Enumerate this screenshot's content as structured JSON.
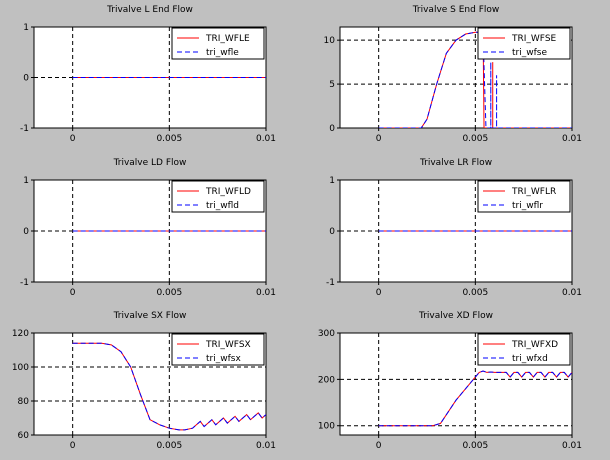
{
  "chart_data": [
    {
      "type": "line",
      "title": "Trivalve L End Flow",
      "xlim": [
        -0.002,
        0.01
      ],
      "ylim": [
        -1,
        1
      ],
      "xticks": [
        0,
        0.005,
        0.01
      ],
      "xtick_labels": [
        "0",
        "0.005",
        "0.01"
      ],
      "yticks": [
        -1,
        0,
        1
      ],
      "ytick_labels": [
        "-1",
        "0",
        "1"
      ],
      "grid": "dashed",
      "legend": "top-right",
      "series": [
        {
          "name": "TRI_WFLE",
          "color": "#ff0000",
          "dashed": false,
          "points": [
            [
              0,
              0
            ],
            [
              0.01,
              0
            ]
          ]
        },
        {
          "name": "tri_wfle",
          "color": "#0000ff",
          "dashed": true,
          "points": [
            [
              0,
              0
            ],
            [
              0.01,
              0
            ]
          ]
        }
      ]
    },
    {
      "type": "line",
      "title": "Trivalve S End Flow",
      "xlim": [
        -0.002,
        0.01
      ],
      "ylim": [
        0,
        11.5
      ],
      "xticks": [
        0,
        0.005,
        0.01
      ],
      "xtick_labels": [
        "0",
        "0.005",
        "0.01"
      ],
      "yticks": [
        0,
        5,
        10
      ],
      "ytick_labels": [
        "0",
        "5",
        "10"
      ],
      "grid": "dashed",
      "legend": "top-right",
      "series": [
        {
          "name": "TRI_WFSE",
          "color": "#ff0000",
          "dashed": false,
          "points": [
            [
              0,
              0
            ],
            [
              0.0022,
              0
            ],
            [
              0.0025,
              1
            ],
            [
              0.003,
              5
            ],
            [
              0.0035,
              8.5
            ],
            [
              0.004,
              10
            ],
            [
              0.0045,
              10.7
            ],
            [
              0.005,
              10.9
            ],
            [
              0.0054,
              10.9
            ],
            [
              0.00545,
              0
            ],
            [
              0.0059,
              0
            ],
            [
              0.0059,
              7.5
            ],
            [
              0.0059,
              0
            ],
            [
              0.01,
              0
            ]
          ]
        },
        {
          "name": "tri_wfse",
          "color": "#0000ff",
          "dashed": true,
          "points": [
            [
              0,
              0
            ],
            [
              0.0022,
              0
            ],
            [
              0.0025,
              1
            ],
            [
              0.003,
              5
            ],
            [
              0.0035,
              8.5
            ],
            [
              0.004,
              10
            ],
            [
              0.0045,
              10.7
            ],
            [
              0.005,
              10.9
            ],
            [
              0.0054,
              10.9
            ],
            [
              0.00545,
              7
            ],
            [
              0.00555,
              0
            ],
            [
              0.0058,
              0
            ],
            [
              0.0058,
              7.5
            ],
            [
              0.0058,
              0
            ],
            [
              0.0061,
              0
            ],
            [
              0.0061,
              6
            ],
            [
              0.0061,
              0
            ],
            [
              0.01,
              0
            ]
          ]
        }
      ]
    },
    {
      "type": "line",
      "title": "Trivalve LD Flow",
      "xlim": [
        -0.002,
        0.01
      ],
      "ylim": [
        -1,
        1
      ],
      "xticks": [
        0,
        0.005,
        0.01
      ],
      "xtick_labels": [
        "0",
        "0.005",
        "0.01"
      ],
      "yticks": [
        -1,
        0,
        1
      ],
      "ytick_labels": [
        "-1",
        "0",
        "1"
      ],
      "grid": "dashed",
      "legend": "top-right",
      "series": [
        {
          "name": "TRI_WFLD",
          "color": "#ff0000",
          "dashed": false,
          "points": [
            [
              0,
              0
            ],
            [
              0.01,
              0
            ]
          ]
        },
        {
          "name": "tri_wfld",
          "color": "#0000ff",
          "dashed": true,
          "points": [
            [
              0,
              0
            ],
            [
              0.01,
              0
            ]
          ]
        }
      ]
    },
    {
      "type": "line",
      "title": "Trivalve LR Flow",
      "xlim": [
        -0.002,
        0.01
      ],
      "ylim": [
        -1,
        1
      ],
      "xticks": [
        0,
        0.005,
        0.01
      ],
      "xtick_labels": [
        "0",
        "0.005",
        "0.01"
      ],
      "yticks": [
        -1,
        0,
        1
      ],
      "ytick_labels": [
        "-1",
        "0",
        "1"
      ],
      "grid": "dashed",
      "legend": "top-right",
      "series": [
        {
          "name": "TRI_WFLR",
          "color": "#ff0000",
          "dashed": false,
          "points": [
            [
              0,
              0
            ],
            [
              0.01,
              0
            ]
          ]
        },
        {
          "name": "tri_wflr",
          "color": "#0000ff",
          "dashed": true,
          "points": [
            [
              0,
              0
            ],
            [
              0.01,
              0
            ]
          ]
        }
      ]
    },
    {
      "type": "line",
      "title": "Trivalve SX Flow",
      "xlim": [
        -0.002,
        0.01
      ],
      "ylim": [
        60,
        120
      ],
      "xticks": [
        0,
        0.005,
        0.01
      ],
      "xtick_labels": [
        "0",
        "0.005",
        "0.01"
      ],
      "yticks": [
        60,
        80,
        100,
        120
      ],
      "ytick_labels": [
        "60",
        "80",
        "100",
        "120"
      ],
      "grid": "dashed",
      "legend": "top-right",
      "series": [
        {
          "name": "TRI_WFSX",
          "color": "#ff0000",
          "dashed": false,
          "points": [
            [
              0,
              114
            ],
            [
              0.0015,
              114
            ],
            [
              0.002,
              113
            ],
            [
              0.0025,
              109
            ],
            [
              0.003,
              100
            ],
            [
              0.0035,
              84
            ],
            [
              0.004,
              69
            ],
            [
              0.0045,
              66
            ],
            [
              0.005,
              64
            ],
            [
              0.0055,
              63
            ],
            [
              0.0058,
              63
            ],
            [
              0.0062,
              64
            ],
            [
              0.0064,
              66
            ],
            [
              0.0066,
              68
            ],
            [
              0.0068,
              65
            ],
            [
              0.007,
              67
            ],
            [
              0.0072,
              69
            ],
            [
              0.0074,
              66
            ],
            [
              0.0076,
              68
            ],
            [
              0.0078,
              70
            ],
            [
              0.008,
              67
            ],
            [
              0.0082,
              69
            ],
            [
              0.0084,
              71
            ],
            [
              0.0086,
              68
            ],
            [
              0.0088,
              70
            ],
            [
              0.009,
              72
            ],
            [
              0.0092,
              69
            ],
            [
              0.0094,
              71
            ],
            [
              0.0096,
              73
            ],
            [
              0.0098,
              70
            ],
            [
              0.01,
              72
            ]
          ]
        },
        {
          "name": "tri_wfsx",
          "color": "#0000ff",
          "dashed": true,
          "points": [
            [
              0,
              114
            ],
            [
              0.0015,
              114
            ],
            [
              0.002,
              113
            ],
            [
              0.0025,
              109
            ],
            [
              0.003,
              100
            ],
            [
              0.0035,
              84
            ],
            [
              0.004,
              69
            ],
            [
              0.0045,
              66
            ],
            [
              0.005,
              64
            ],
            [
              0.0055,
              63
            ],
            [
              0.0058,
              63
            ],
            [
              0.0062,
              64
            ],
            [
              0.0064,
              66
            ],
            [
              0.0066,
              68
            ],
            [
              0.0068,
              65
            ],
            [
              0.007,
              67
            ],
            [
              0.0072,
              69
            ],
            [
              0.0074,
              66
            ],
            [
              0.0076,
              68
            ],
            [
              0.0078,
              70
            ],
            [
              0.008,
              67
            ],
            [
              0.0082,
              69
            ],
            [
              0.0084,
              71
            ],
            [
              0.0086,
              68
            ],
            [
              0.0088,
              70
            ],
            [
              0.009,
              72
            ],
            [
              0.0092,
              69
            ],
            [
              0.0094,
              71
            ],
            [
              0.0096,
              73
            ],
            [
              0.0098,
              70
            ],
            [
              0.01,
              72
            ]
          ]
        }
      ]
    },
    {
      "type": "line",
      "title": "Trivalve XD Flow",
      "xlim": [
        -0.002,
        0.01
      ],
      "ylim": [
        80,
        300
      ],
      "xticks": [
        0,
        0.005,
        0.01
      ],
      "xtick_labels": [
        "0",
        "0.005",
        "0.01"
      ],
      "yticks": [
        100,
        200,
        300
      ],
      "ytick_labels": [
        "100",
        "200",
        "300"
      ],
      "grid": "dashed",
      "legend": "top-right",
      "series": [
        {
          "name": "TRI_WFXD",
          "color": "#ff0000",
          "dashed": false,
          "points": [
            [
              0,
              100
            ],
            [
              0.0028,
              100
            ],
            [
              0.0032,
              105
            ],
            [
              0.0036,
              130
            ],
            [
              0.004,
              155
            ],
            [
              0.0044,
              175
            ],
            [
              0.0048,
              195
            ],
            [
              0.0052,
              215
            ],
            [
              0.0054,
              218
            ],
            [
              0.0056,
              215
            ],
            [
              0.0058,
              216
            ],
            [
              0.006,
              215
            ],
            [
              0.0066,
              215
            ],
            [
              0.0068,
              205
            ],
            [
              0.007,
              215
            ],
            [
              0.0072,
              215
            ],
            [
              0.0074,
              205
            ],
            [
              0.0076,
              215
            ],
            [
              0.0078,
              215
            ],
            [
              0.008,
              205
            ],
            [
              0.0082,
              215
            ],
            [
              0.0084,
              215
            ],
            [
              0.0086,
              205
            ],
            [
              0.0088,
              215
            ],
            [
              0.009,
              215
            ],
            [
              0.0092,
              205
            ],
            [
              0.0094,
              215
            ],
            [
              0.0096,
              215
            ],
            [
              0.0098,
              205
            ],
            [
              0.01,
              215
            ]
          ]
        },
        {
          "name": "tri_wfxd",
          "color": "#0000ff",
          "dashed": true,
          "points": [
            [
              0,
              100
            ],
            [
              0.0028,
              100
            ],
            [
              0.0032,
              105
            ],
            [
              0.0036,
              130
            ],
            [
              0.004,
              155
            ],
            [
              0.0044,
              175
            ],
            [
              0.0048,
              195
            ],
            [
              0.0052,
              215
            ],
            [
              0.0054,
              218
            ],
            [
              0.0056,
              215
            ],
            [
              0.0058,
              216
            ],
            [
              0.006,
              215
            ],
            [
              0.0066,
              215
            ],
            [
              0.0068,
              205
            ],
            [
              0.007,
              215
            ],
            [
              0.0072,
              215
            ],
            [
              0.0074,
              205
            ],
            [
              0.0076,
              215
            ],
            [
              0.0078,
              215
            ],
            [
              0.008,
              205
            ],
            [
              0.0082,
              215
            ],
            [
              0.0084,
              215
            ],
            [
              0.0086,
              205
            ],
            [
              0.0088,
              215
            ],
            [
              0.009,
              215
            ],
            [
              0.0092,
              205
            ],
            [
              0.0094,
              215
            ],
            [
              0.0096,
              215
            ],
            [
              0.0098,
              205
            ],
            [
              0.01,
              215
            ]
          ]
        }
      ]
    }
  ]
}
